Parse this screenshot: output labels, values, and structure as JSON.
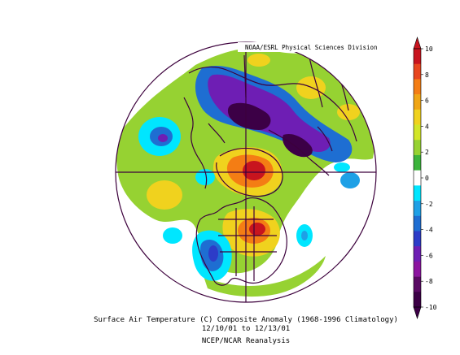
{
  "credit": "NOAA/ESRL Physical Sciences Division",
  "caption": {
    "line1": "Surface Air Temperature (C) Composite Anomaly (1968-1996 Climatology)",
    "line2": "12/10/01   to 12/13/01",
    "line3": "NCEP/NCAR Reanalysis"
  },
  "colorbar": {
    "ticks": [
      "10",
      "8",
      "6",
      "4",
      "2",
      "0",
      "-2",
      "-4",
      "-6",
      "-8",
      "-10"
    ],
    "colors_top_to_bottom": [
      "#c8141e",
      "#e8461e",
      "#f47d14",
      "#f0a514",
      "#f0d21e",
      "#d2e628",
      "#96d232",
      "#3cb43c",
      "#ffffff",
      "#00e6ff",
      "#1ea0e6",
      "#1e6ed2",
      "#2d3cc8",
      "#6e1eb4",
      "#8c14a0",
      "#5a0a64",
      "#3c0046"
    ]
  },
  "palette": {
    "ocean": "#ffffff",
    "coast": "#3c003c",
    "warm_light": "#96d232",
    "warm_mid": "#f0d21e",
    "warm_high": "#f47d14",
    "warm_max": "#c8141e",
    "cold_light": "#00e6ff",
    "cold_mid": "#1e6ed2",
    "cold_high": "#6e1eb4",
    "cold_max": "#3c0046"
  }
}
